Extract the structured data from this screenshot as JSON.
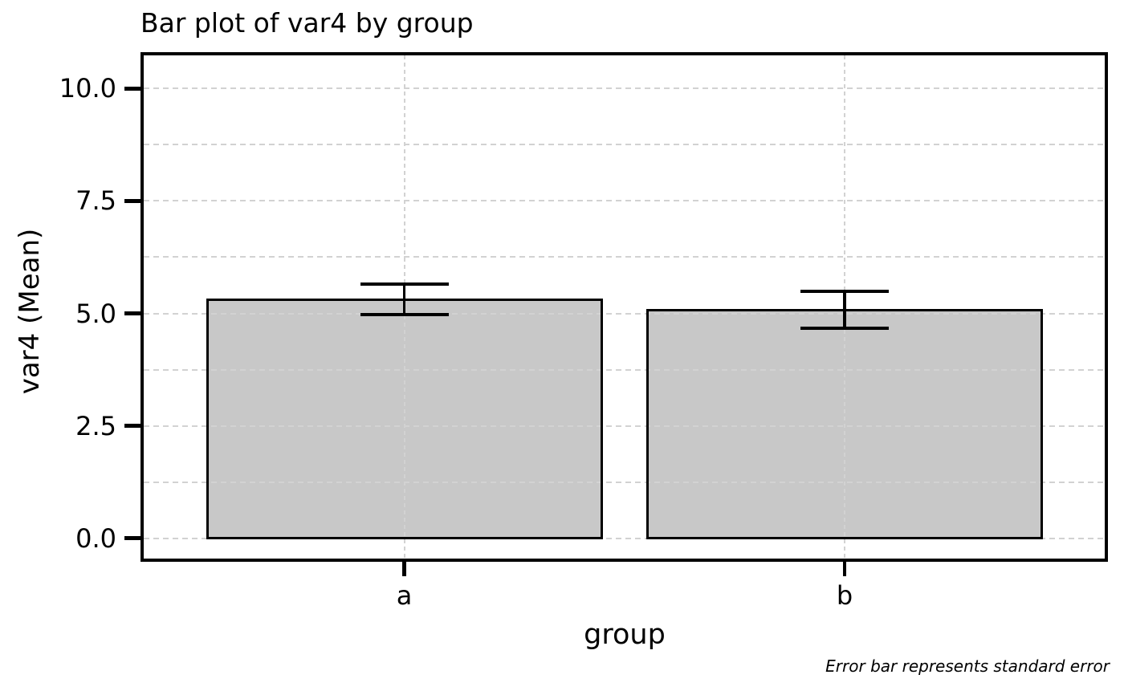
{
  "title": "Bar plot of var4 by group",
  "footnote": "Error bar represents standard error",
  "chart_data": {
    "type": "bar",
    "title": "Bar plot of var4 by group",
    "xlabel": "group",
    "ylabel": "var4 (Mean)",
    "categories": [
      "a",
      "b"
    ],
    "series": [
      {
        "name": "mean of var4",
        "values": [
          5.31,
          5.08
        ]
      }
    ],
    "error_bars": {
      "type": "standard error",
      "values": [
        0.34,
        0.41
      ]
    },
    "ylim": [
      0,
      10.8
    ],
    "yticks": [
      0,
      2.5,
      5,
      7.5,
      10
    ],
    "ytick_labels": [
      "0.0",
      "2.5",
      "5.0",
      "7.5",
      "10.0"
    ],
    "grid": {
      "show": true,
      "style": "dashed",
      "axis": "both",
      "minor_step": 1.25,
      "grid_max": 10
    },
    "legend_position": "none",
    "annotation": "Error bar represents standard error",
    "colors": {
      "bar_fill": "#c8c8c8",
      "bar_edge": "#000000",
      "grid": "#d2d2d2",
      "spine": "#000000",
      "text": "#000000",
      "background": "#ffffff"
    }
  }
}
